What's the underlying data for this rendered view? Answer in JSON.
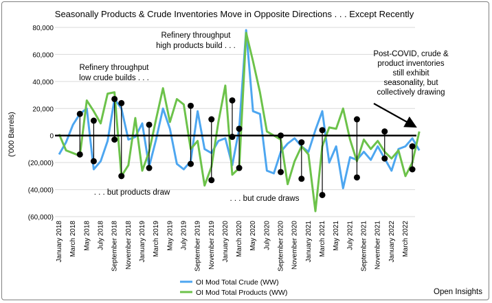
{
  "chart_data": {
    "type": "line",
    "title": "Seasonally Products & Crude Inventories Move in Opposite Directions . . . Except Recently",
    "ylabel": "('000 Barrels)",
    "ylim": [
      -60000,
      80000
    ],
    "yticks": [
      80000,
      60000,
      40000,
      20000,
      0,
      -20000,
      -40000,
      -60000
    ],
    "ytick_labels": [
      "80,000",
      "60,000",
      "40,000",
      "20,000",
      "0",
      "(20,000)",
      "(40,000)",
      "(60,000)"
    ],
    "x_labels": [
      "January 2018",
      "March 2018",
      "May 2018",
      "July 2018",
      "September 2018",
      "November 2018",
      "January 2019",
      "March 2019",
      "May 2019",
      "July 2019",
      "September 2019",
      "November 2019",
      "January 2020",
      "March 2020",
      "May 2020",
      "July 2020",
      "September 2020",
      "November 2020",
      "January 2021",
      "March 2021",
      "May 2021",
      "July 2021",
      "September 2021",
      "November 2021",
      "January 2022",
      "March 2022"
    ],
    "series": [
      {
        "name": "OI Mod Total Crude (WW)",
        "color": "#4da6f0",
        "values": [
          -14000,
          -5000,
          8000,
          16000,
          20000,
          -25000,
          -19000,
          -4000,
          27000,
          20000,
          -3000,
          -1000,
          9000,
          -23000,
          -3000,
          20000,
          5000,
          -21000,
          -25000,
          -19000,
          18000,
          -10000,
          -13000,
          -4000,
          -2000,
          -22000,
          5000,
          78000,
          18000,
          16000,
          -26000,
          -28000,
          -12000,
          -6000,
          -2000,
          -8000,
          -12000,
          4000,
          18000,
          -20000,
          -8000,
          -39000,
          -16000,
          -18000,
          -12000,
          -18000,
          -8000,
          -17000,
          -26000,
          -10000,
          -8000,
          -2000,
          -11000
        ]
      },
      {
        "name": "OI Mod Total Products (WW)",
        "color": "#6cc24a",
        "values": [
          1000,
          -11000,
          -13000,
          -15000,
          26000,
          18000,
          9000,
          31000,
          32000,
          -30000,
          -22000,
          13000,
          -26000,
          -12000,
          12000,
          35000,
          10000,
          27000,
          23000,
          -10000,
          -4000,
          -37000,
          -23000,
          10000,
          37000,
          -29000,
          -24000,
          76000,
          55000,
          32000,
          3000,
          0,
          -3000,
          -36000,
          -19000,
          -8000,
          -14000,
          -56000,
          -8000,
          6000,
          5000,
          20000,
          -3000,
          -19000,
          -3000,
          -10000,
          -4000,
          -12000,
          -17000,
          -11000,
          -30000,
          -20000,
          3000
        ]
      }
    ],
    "annotations": [
      "Refinery throughput high products build . . .",
      "Refinery throughput low crude builds . . .",
      ". . . but products draw",
      ". . . but crude draws",
      "Post-COVID, crude & product inventories still exhibit seasonality, but collectively drawing"
    ],
    "legend": "bottom-center"
  },
  "text": {
    "title": "Seasonally Products & Crude Inventories Move in Opposite Directions . . . Except Recently",
    "ylabel": "('000 Barrels)",
    "annot_high_1": "Refinery throughput",
    "annot_high_2": "high products build . . .",
    "annot_low_1": "Refinery throughput",
    "annot_low_2": "low crude builds . . .",
    "annot_pdraw": ". . . but products draw",
    "annot_cdraw": ". . . but crude draws",
    "annot_post_1": "Post-COVID, crude &",
    "annot_post_2": "product inventories",
    "annot_post_3": "still exhibit",
    "annot_post_4": "seasonality, but",
    "annot_post_5": "collectively drawing",
    "legend_crude": "OI Mod Total Crude (WW)",
    "legend_products": "OI Mod Total Products (WW)",
    "brand": "Open Insights"
  },
  "pairs": [
    [
      3,
      16000,
      -14000
    ],
    [
      5,
      11000,
      -19000
    ],
    [
      8,
      27000,
      -3000
    ],
    [
      9,
      24000,
      -30000
    ],
    [
      13,
      8000,
      -24000
    ],
    [
      19,
      22000,
      -21000
    ],
    [
      22,
      12000,
      -33000
    ],
    [
      25,
      26000,
      -1000
    ],
    [
      26,
      5000,
      -24000
    ],
    [
      32,
      0,
      -27000
    ],
    [
      35,
      -5000,
      -32000
    ],
    [
      38,
      4000,
      -44000
    ],
    [
      43,
      12000,
      -31000
    ],
    [
      47,
      3000,
      -17000
    ],
    [
      51,
      -8000,
      -25000
    ]
  ]
}
